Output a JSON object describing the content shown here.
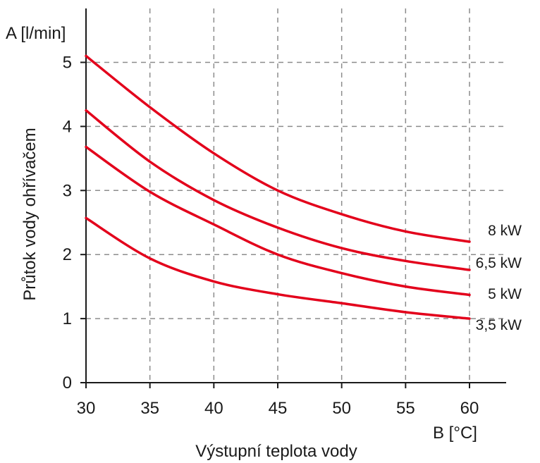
{
  "chart_data": {
    "type": "line",
    "y_unit_label": "A [l/min]",
    "x_unit_label": "B [°C]",
    "ylabel": "Průtok vody ohřívačem",
    "xlabel": "Výstupní teplota vody",
    "xlim": [
      30,
      60
    ],
    "ylim": [
      0,
      5.5
    ],
    "x_ticks": [
      "30",
      "35",
      "40",
      "45",
      "50",
      "55",
      "60"
    ],
    "y_ticks": [
      "0",
      "1",
      "2",
      "3",
      "4",
      "5"
    ],
    "grid": true,
    "line_color": "#e3001b",
    "x": [
      30,
      35,
      40,
      45,
      50,
      55,
      60
    ],
    "series": [
      {
        "name": "8 kW",
        "values": [
          5.1,
          4.3,
          3.58,
          3.0,
          2.63,
          2.36,
          2.2
        ]
      },
      {
        "name": "6,5 kW",
        "values": [
          4.25,
          3.45,
          2.85,
          2.42,
          2.1,
          1.9,
          1.76
        ]
      },
      {
        "name": "5 kW",
        "values": [
          3.68,
          2.98,
          2.47,
          2.0,
          1.71,
          1.5,
          1.37
        ]
      },
      {
        "name": "3,5 kW",
        "values": [
          2.57,
          1.94,
          1.58,
          1.38,
          1.24,
          1.1,
          1.0
        ]
      }
    ]
  }
}
